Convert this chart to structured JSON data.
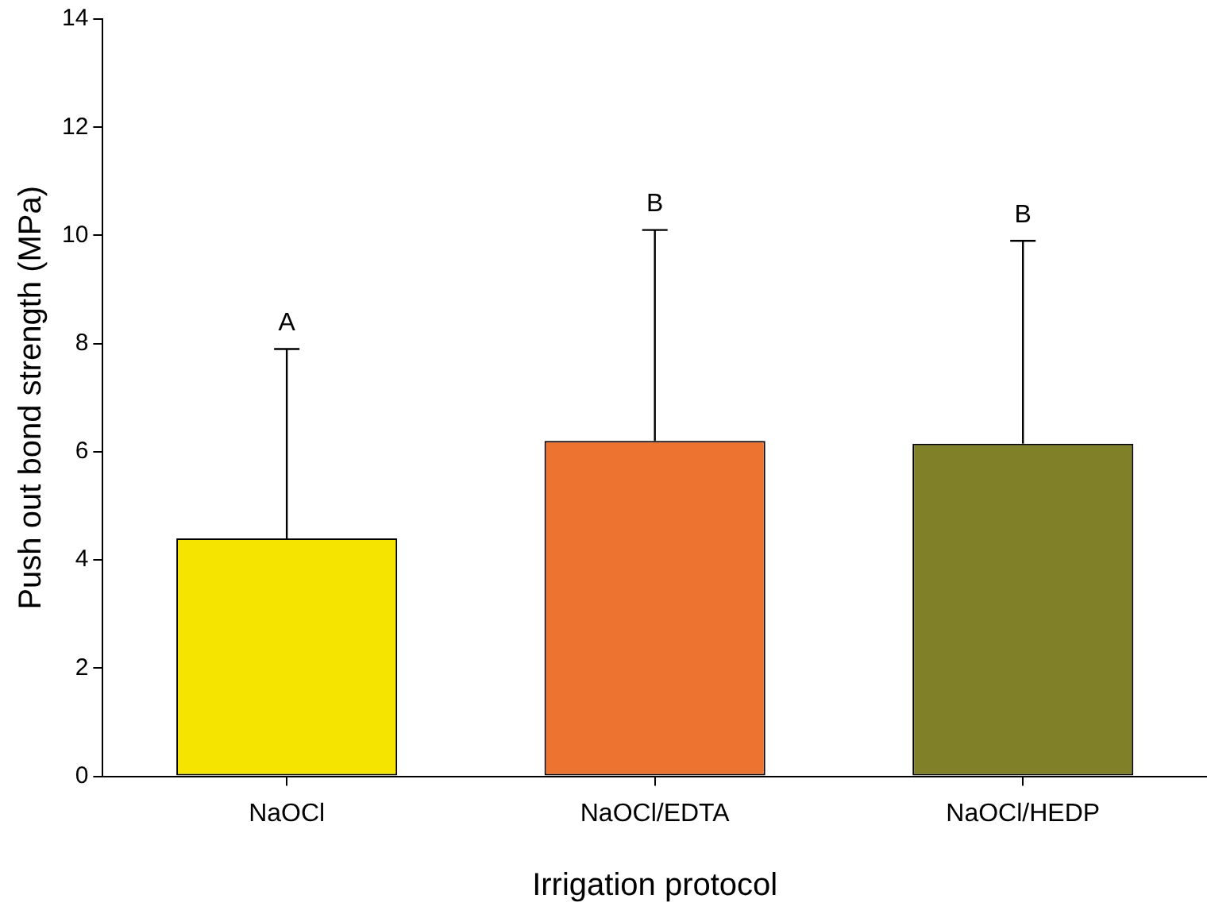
{
  "chart_data": {
    "type": "bar",
    "xlabel": "Irrigation protocol",
    "ylabel": "Push out bond strength (MPa)",
    "categories": [
      "NaOCl",
      "NaOCl/EDTA",
      "NaOCl/HEDP"
    ],
    "values": [
      4.4,
      6.2,
      6.15
    ],
    "colors": [
      "#f5e400",
      "#ed7330",
      "#808028"
    ],
    "errors": [
      [
        4.4,
        7.9
      ],
      [
        6.2,
        10.1
      ],
      [
        6.15,
        9.9
      ]
    ],
    "ylim": [
      0,
      14
    ],
    "yticks": [
      0,
      2,
      4,
      6,
      8,
      10,
      12,
      14
    ],
    "grid": false,
    "legend": false,
    "annotations": [
      {
        "text": "A",
        "x": "NaOCl",
        "y": 7.9
      },
      {
        "text": "B",
        "x": "NaOCl/EDTA",
        "y": 10.1
      },
      {
        "text": "B",
        "x": "NaOCl/HEDP",
        "y": 9.9
      }
    ]
  }
}
